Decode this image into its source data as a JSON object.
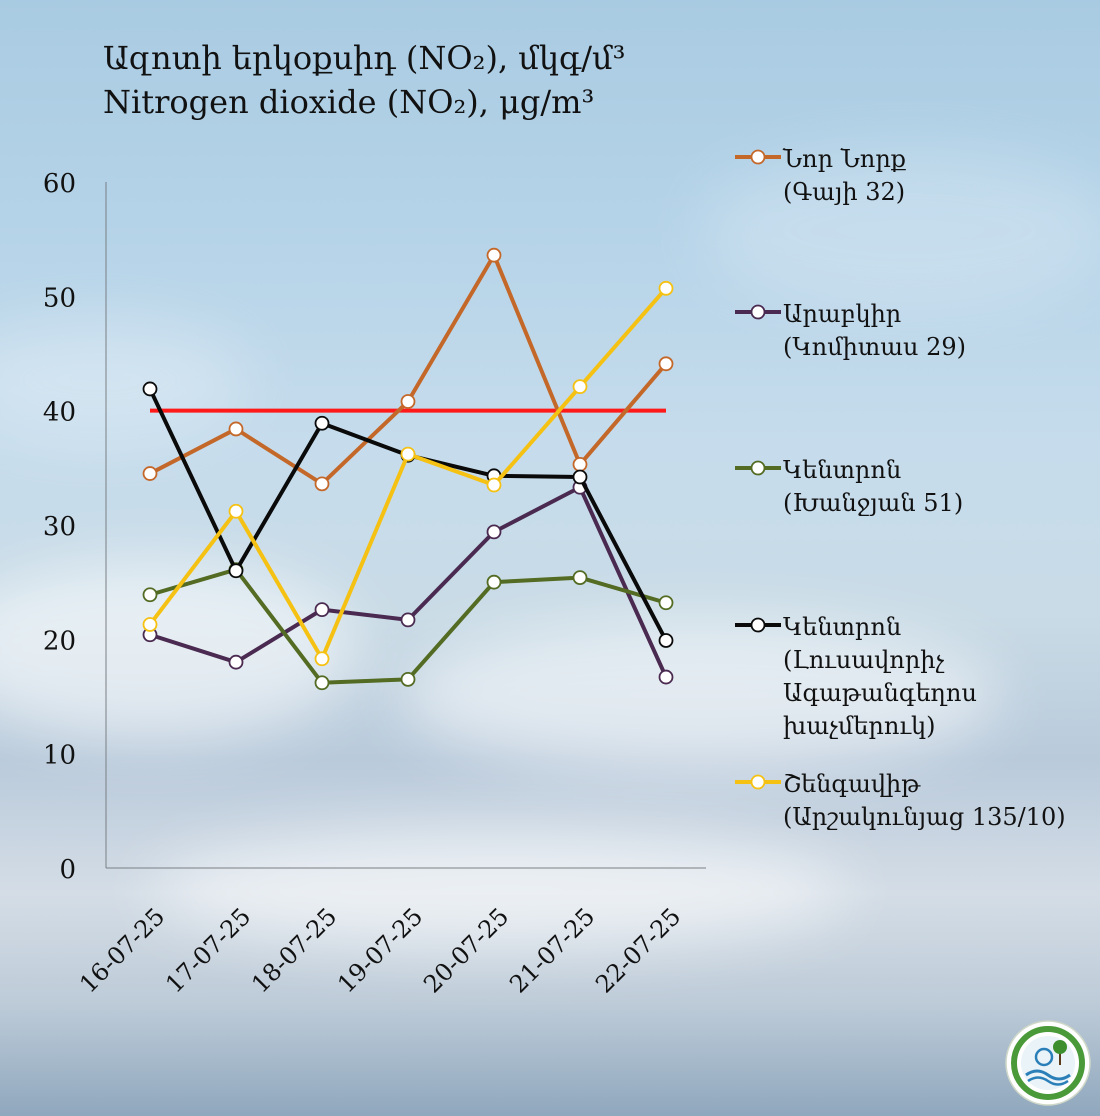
{
  "title": {
    "line1": "Ազոտի  երկօքսիդ (NO₂), մկգ/մ³",
    "line2": "Nitrogen  dioxide (NO₂), μg/m³"
  },
  "colors": {
    "nor_nork": "#c4682a",
    "arabkir": "#4a2a50",
    "kentron_khanjyan": "#536b22",
    "kentron_lusavorich": "#0a0a0a",
    "shengavit": "#f5c112",
    "limit": "#ff1a1a"
  },
  "chart_data": {
    "type": "line",
    "categories": [
      "16-07-25",
      "17-07-25",
      "18-07-25",
      "19-07-25",
      "20-07-25",
      "21-07-25",
      "22-07-25"
    ],
    "ylim": [
      0,
      60
    ],
    "yticks": [
      0,
      10,
      20,
      30,
      40,
      50,
      60
    ],
    "grid": false,
    "legend_position": "right",
    "series": [
      {
        "name": "Նոր Նորք\n(Գայի 32)",
        "color": "#c4682a",
        "values": [
          34.5,
          38.4,
          33.6,
          40.8,
          53.6,
          35.3,
          44.1
        ]
      },
      {
        "name": "Արաբկիր\n(Կոմիտաս 29)",
        "color": "#4a2a50",
        "values": [
          20.4,
          18.0,
          22.6,
          21.7,
          29.4,
          33.3,
          16.7
        ]
      },
      {
        "name": "Կենտրոն\n(Խանջյան 51)",
        "color": "#536b22",
        "values": [
          23.9,
          26.1,
          16.2,
          16.5,
          25.0,
          25.4,
          23.2
        ]
      },
      {
        "name": "Կենտրոն\n(Լուսավորիչ\nԱգաթանգեղոս\nխաչմերուկ)",
        "color": "#0a0a0a",
        "values": [
          41.9,
          26.0,
          38.9,
          36.1,
          34.3,
          34.2,
          19.9
        ]
      },
      {
        "name": "Շենգավիթ\n(Արշակունյաց 135/10)",
        "color": "#f5c112",
        "values": [
          21.3,
          31.2,
          18.3,
          36.2,
          33.5,
          42.1,
          50.7
        ]
      }
    ],
    "reference_line": {
      "value": 40,
      "color": "#ff1a1a"
    }
  }
}
